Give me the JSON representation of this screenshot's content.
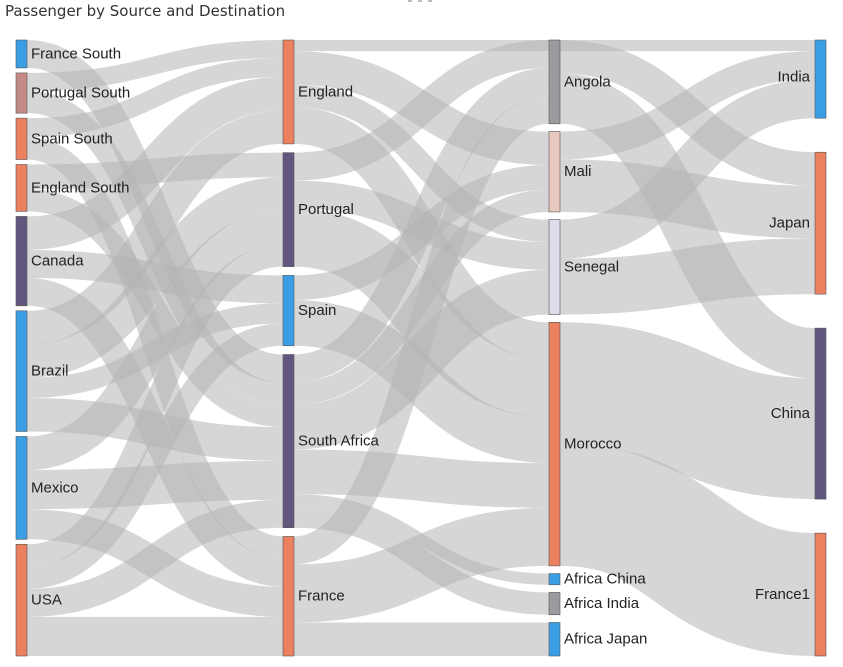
{
  "title": "Passenger by Source and Destination",
  "colors": {
    "link": "#b4b4b4",
    "blue": "#3a9ee5",
    "orange": "#ec8160",
    "purple": "#62567e",
    "gray": "#9b9b9f",
    "pink": "#e8c8c0",
    "lavender": "#dcdcea",
    "mauve": "#c48a86"
  },
  "chart_data": {
    "type": "sankey",
    "title": "Passenger by Source and Destination",
    "nodes": [
      {
        "name": "France South",
        "column": 0,
        "color": "blue"
      },
      {
        "name": "Portugal South",
        "column": 0,
        "color": "mauve"
      },
      {
        "name": "Spain South",
        "column": 0,
        "color": "orange"
      },
      {
        "name": "England South",
        "column": 0,
        "color": "orange"
      },
      {
        "name": "Canada",
        "column": 0,
        "color": "purple"
      },
      {
        "name": "Brazil",
        "column": 0,
        "color": "blue"
      },
      {
        "name": "Mexico",
        "column": 0,
        "color": "blue"
      },
      {
        "name": "USA",
        "column": 0,
        "color": "orange"
      },
      {
        "name": "England",
        "column": 1,
        "color": "orange"
      },
      {
        "name": "Portugal",
        "column": 1,
        "color": "purple"
      },
      {
        "name": "Spain",
        "column": 1,
        "color": "blue"
      },
      {
        "name": "South Africa",
        "column": 1,
        "color": "purple"
      },
      {
        "name": "France",
        "column": 1,
        "color": "orange"
      },
      {
        "name": "Angola",
        "column": 2,
        "color": "gray"
      },
      {
        "name": "Mali",
        "column": 2,
        "color": "pink"
      },
      {
        "name": "Senegal",
        "column": 2,
        "color": "lavender"
      },
      {
        "name": "Morocco",
        "column": 2,
        "color": "orange"
      },
      {
        "name": "Africa China",
        "column": 2,
        "color": "blue"
      },
      {
        "name": "Africa India",
        "column": 2,
        "color": "gray"
      },
      {
        "name": "Africa Japan",
        "column": 2,
        "color": "blue"
      },
      {
        "name": "India",
        "column": 3,
        "color": "blue"
      },
      {
        "name": "Japan",
        "column": 3,
        "color": "orange"
      },
      {
        "name": "China",
        "column": 3,
        "color": "purple"
      },
      {
        "name": "France1",
        "column": 3,
        "color": "orange"
      }
    ],
    "links": [
      [
        "France South",
        "South Africa",
        25
      ],
      [
        "Portugal South",
        "England",
        16
      ],
      [
        "Portugal South",
        "South Africa",
        20
      ],
      [
        "Spain South",
        "England",
        17
      ],
      [
        "Spain South",
        "France",
        20
      ],
      [
        "England South",
        "Portugal",
        22
      ],
      [
        "England South",
        "South Africa",
        20
      ],
      [
        "Canada",
        "England",
        30
      ],
      [
        "Canada",
        "Spain",
        25
      ],
      [
        "Canada",
        "France",
        25
      ],
      [
        "Brazil",
        "England",
        30
      ],
      [
        "Brazil",
        "Portugal",
        30
      ],
      [
        "Brazil",
        "South Africa",
        30
      ],
      [
        "Brazil",
        "Spain",
        18
      ],
      [
        "Mexico",
        "Portugal",
        30
      ],
      [
        "Mexico",
        "South Africa",
        35
      ],
      [
        "Mexico",
        "France",
        27
      ],
      [
        "USA",
        "Portugal",
        20
      ],
      [
        "USA",
        "Spain",
        20
      ],
      [
        "USA",
        "South Africa",
        25
      ],
      [
        "USA",
        "France",
        35
      ],
      [
        "England",
        "India",
        10
      ],
      [
        "England",
        "Mali",
        30
      ],
      [
        "England",
        "Senegal",
        20
      ],
      [
        "England",
        "Morocco",
        33
      ],
      [
        "Portugal",
        "Angola",
        25
      ],
      [
        "Portugal",
        "Senegal",
        25
      ],
      [
        "Portugal",
        "Morocco",
        52
      ],
      [
        "Spain",
        "Mali",
        22
      ],
      [
        "Spain",
        "Morocco",
        41
      ],
      [
        "South Africa",
        "Angola",
        25
      ],
      [
        "South Africa",
        "Mali",
        20
      ],
      [
        "South Africa",
        "Senegal",
        40
      ],
      [
        "South Africa",
        "Morocco",
        40
      ],
      [
        "South Africa",
        "Africa China",
        10
      ],
      [
        "South Africa",
        "Africa India",
        20
      ],
      [
        "France",
        "Angola",
        25
      ],
      [
        "France",
        "Morocco",
        52
      ],
      [
        "France",
        "Africa Japan",
        30
      ],
      [
        "Angola",
        "Japan",
        30
      ],
      [
        "Angola",
        "China",
        45
      ],
      [
        "Mali",
        "India",
        25
      ],
      [
        "Mali",
        "Japan",
        47
      ],
      [
        "Senegal",
        "India",
        35
      ],
      [
        "Senegal",
        "Japan",
        50
      ],
      [
        "Morocco",
        "China",
        108
      ],
      [
        "Morocco",
        "France1",
        110
      ]
    ]
  }
}
